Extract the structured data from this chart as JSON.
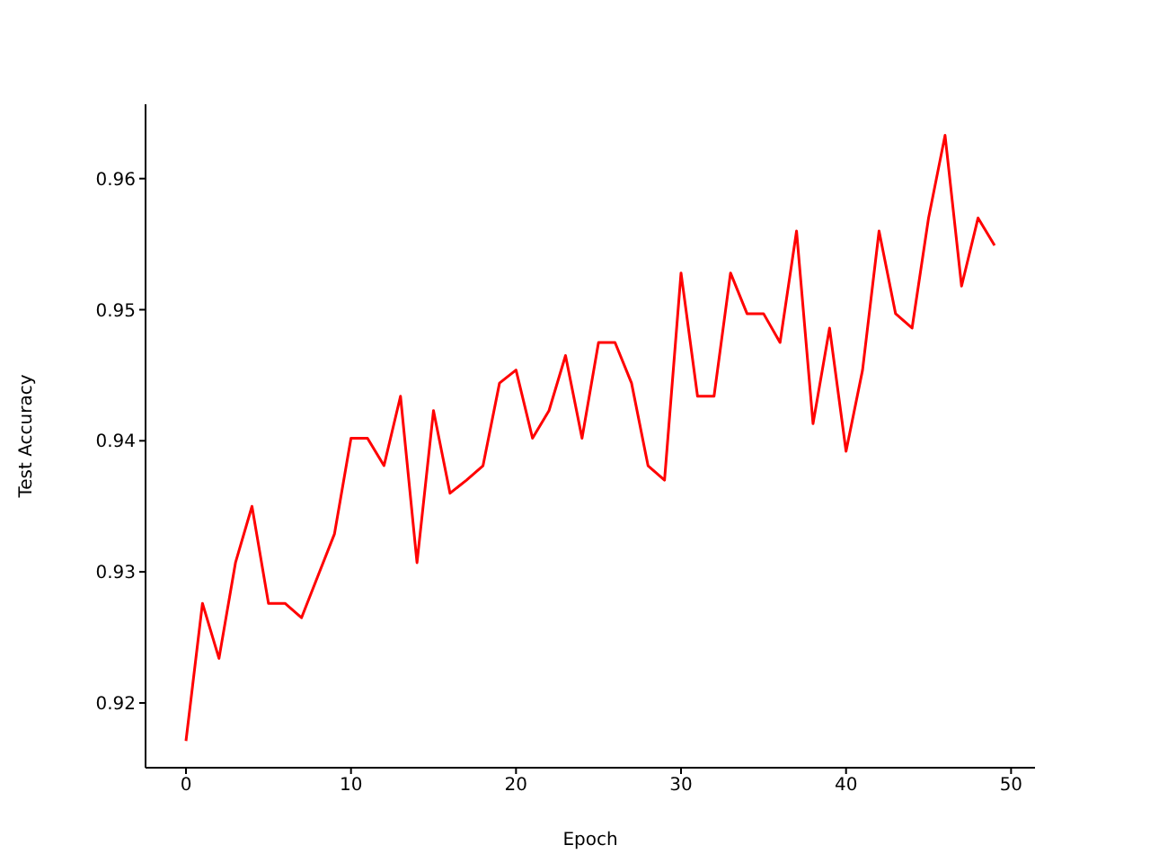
{
  "chart_data": {
    "type": "line",
    "xlabel": "Epoch",
    "ylabel": "Test Accuracy",
    "x": [
      0,
      1,
      2,
      3,
      4,
      5,
      6,
      7,
      8,
      9,
      10,
      11,
      12,
      13,
      14,
      15,
      16,
      17,
      18,
      19,
      20,
      21,
      22,
      23,
      24,
      25,
      26,
      27,
      28,
      29,
      30,
      31,
      32,
      33,
      34,
      35,
      36,
      37,
      38,
      39,
      40,
      41,
      42,
      43,
      44,
      45,
      46,
      47,
      48,
      49
    ],
    "series": [
      {
        "color": "#ff0000",
        "values": [
          0.9171,
          0.9276,
          0.9234,
          0.9307,
          0.935,
          0.9276,
          0.9276,
          0.9265,
          0.9297,
          0.9329,
          0.9402,
          0.9402,
          0.9381,
          0.9434,
          0.9307,
          0.9423,
          0.936,
          0.937,
          0.9381,
          0.9444,
          0.9454,
          0.9402,
          0.9423,
          0.9465,
          0.9402,
          0.9475,
          0.9475,
          0.9444,
          0.9381,
          0.937,
          0.9528,
          0.9434,
          0.9434,
          0.9528,
          0.9497,
          0.9497,
          0.9475,
          0.956,
          0.9413,
          0.9486,
          0.9392,
          0.9454,
          0.956,
          0.9497,
          0.9486,
          0.957,
          0.9633,
          0.9518,
          0.957,
          0.9549
        ]
      }
    ],
    "xlim": [
      -2.45,
      51.45
    ],
    "xticks": [
      0,
      10,
      20,
      30,
      40,
      50
    ],
    "ylim": [
      0.91506,
      0.96567
    ],
    "yticks": [
      0.92,
      0.93,
      0.94,
      0.95,
      0.96
    ],
    "grid": false,
    "legend": false,
    "marker": "none",
    "line_style": "solid"
  }
}
